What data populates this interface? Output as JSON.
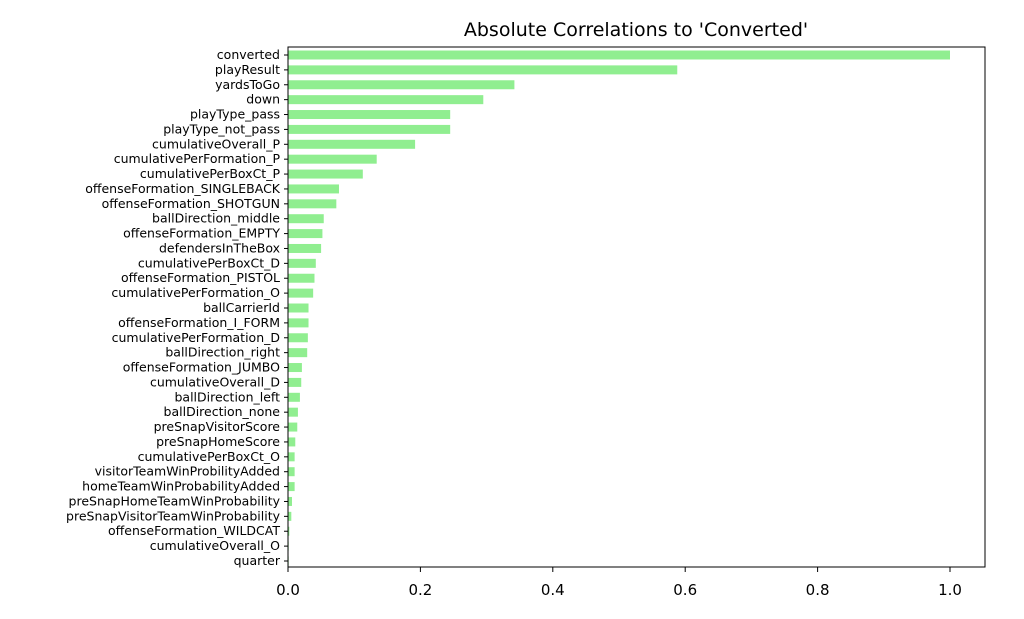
{
  "chart_data": {
    "type": "bar",
    "orientation": "horizontal",
    "title": "Absolute Correlations to 'Converted'",
    "xlabel": "",
    "ylabel": "",
    "xlim": [
      0,
      1.05
    ],
    "xticks": [
      "0.0",
      "0.2",
      "0.4",
      "0.6",
      "0.8",
      "1.0"
    ],
    "grid": false,
    "bar_color": "#90ee90",
    "categories": [
      "converted",
      "playResult",
      "yardsToGo",
      "down",
      "playType_pass",
      "playType_not_pass",
      "cumulativeOverall_P",
      "cumulativePerFormation_P",
      "cumulativePerBoxCt_P",
      "offenseFormation_SINGLEBACK",
      "offenseFormation_SHOTGUN",
      "ballDirection_middle",
      "offenseFormation_EMPTY",
      "defendersInTheBox",
      "cumulativePerBoxCt_D",
      "offenseFormation_PISTOL",
      "cumulativePerFormation_O",
      "ballCarrierId",
      "offenseFormation_I_FORM",
      "cumulativePerFormation_D",
      "ballDirection_right",
      "offenseFormation_JUMBO",
      "cumulativeOverall_D",
      "ballDirection_left",
      "ballDirection_none",
      "preSnapVisitorScore",
      "preSnapHomeScore",
      "cumulativePerBoxCt_O",
      "visitorTeamWinProbilityAdded",
      "homeTeamWinProbabilityAdded",
      "preSnapHomeTeamWinProbability",
      "preSnapVisitorTeamWinProbability",
      "offenseFormation_WILDCAT",
      "cumulativeOverall_O",
      "quarter"
    ],
    "values": [
      1.0,
      0.588,
      0.342,
      0.295,
      0.245,
      0.245,
      0.192,
      0.134,
      0.113,
      0.077,
      0.073,
      0.054,
      0.052,
      0.05,
      0.042,
      0.04,
      0.038,
      0.031,
      0.031,
      0.03,
      0.029,
      0.021,
      0.02,
      0.018,
      0.015,
      0.014,
      0.011,
      0.01,
      0.01,
      0.01,
      0.006,
      0.005,
      0.002,
      0.001,
      0.001
    ]
  }
}
